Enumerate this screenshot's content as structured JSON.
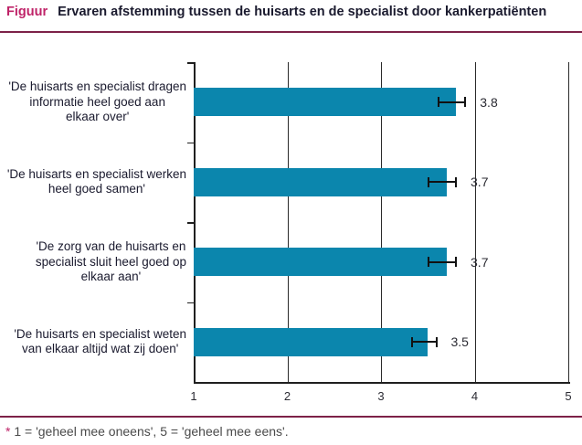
{
  "header": {
    "kicker": "Figuur",
    "title": "Ervaren afstemming tussen de huisarts en de specialist door kankerpatiënten"
  },
  "footnote": {
    "marker": "*",
    "text": " 1 = 'geheel mee oneens', 5 = 'geheel mee eens'."
  },
  "colors": {
    "accent_magenta": "#bf2368",
    "rule_maroon": "#7d2248",
    "bar_teal": "#0b86ad",
    "axis_black": "#1f1f1f",
    "text_dark": "#1a1a2e",
    "footnote_gray": "#4a4a4a"
  },
  "chart_data": {
    "type": "bar",
    "orientation": "horizontal",
    "title": "Ervaren afstemming tussen de huisarts en de specialist door kankerpatiënten",
    "categories": [
      "'De huisarts en specialist dragen informatie heel goed aan elkaar over'",
      "'De huisarts en specialist werken heel goed samen'",
      "'De zorg van de huisarts en specialist sluit heel goed op elkaar aan'",
      "'De huisarts en specialist weten van elkaar altijd wat zij doen'"
    ],
    "category_lines": [
      [
        "'De huisarts en specialist dragen",
        "informatie heel goed aan",
        "elkaar over'"
      ],
      [
        "'De huisarts en specialist werken",
        "heel goed samen'"
      ],
      [
        "'De zorg van de huisarts en",
        "specialist sluit heel goed op",
        "elkaar aan'"
      ],
      [
        "'De huisarts en specialist weten",
        "van elkaar altijd wat zij doen'"
      ]
    ],
    "values": [
      3.8,
      3.7,
      3.7,
      3.5
    ],
    "value_labels": [
      "3.8",
      "3.7",
      "3.7",
      "3.5"
    ],
    "error_low": [
      3.6,
      3.5,
      3.5,
      3.32
    ],
    "error_high": [
      3.91,
      3.81,
      3.81,
      3.6
    ],
    "xlim": [
      1,
      5
    ],
    "xticks": [
      "1",
      "2",
      "3",
      "4",
      "5"
    ],
    "xlabel": "",
    "ylabel": "",
    "grid": "vertical-at-ticks",
    "legend": "none",
    "scale_note": "1 = geheel mee oneens, 5 = geheel mee eens"
  }
}
